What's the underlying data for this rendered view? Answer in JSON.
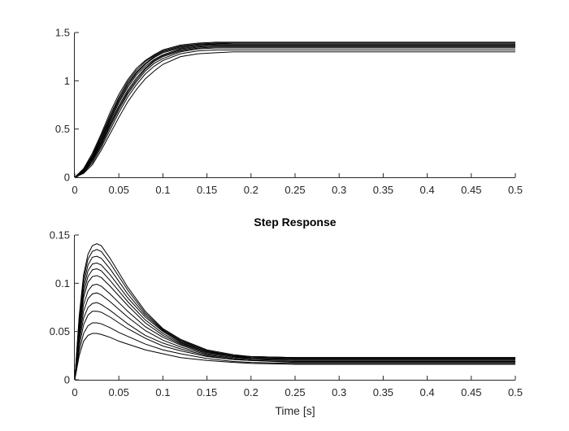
{
  "chart_data": [
    {
      "type": "line",
      "title": "",
      "xlabel": "",
      "ylabel": "",
      "xlim": [
        0,
        0.5
      ],
      "ylim": [
        0,
        1.5
      ],
      "xticks": [
        0,
        0.05,
        0.1,
        0.15,
        0.2,
        0.25,
        0.3,
        0.35,
        0.4,
        0.45,
        0.5
      ],
      "xtick_labels": [
        "0",
        "0.05",
        "0.1",
        "0.15",
        "0.2",
        "0.25",
        "0.3",
        "0.35",
        "0.4",
        "0.45",
        "0.5"
      ],
      "yticks": [
        0,
        0.5,
        1,
        1.5
      ],
      "ytick_labels": [
        "0",
        "0.5",
        "1",
        "1.5"
      ],
      "grid": false,
      "legend": "none",
      "line_color": "#000000",
      "x": [
        0,
        0.01,
        0.02,
        0.03,
        0.04,
        0.05,
        0.06,
        0.07,
        0.08,
        0.09,
        0.1,
        0.12,
        0.14,
        0.16,
        0.18,
        0.2,
        0.25,
        0.3,
        0.35,
        0.4,
        0.45,
        0.5
      ],
      "series": [
        {
          "values": [
            0,
            0.04,
            0.13,
            0.28,
            0.45,
            0.62,
            0.78,
            0.91,
            1.02,
            1.1,
            1.17,
            1.25,
            1.28,
            1.29,
            1.3,
            1.3,
            1.3,
            1.3,
            1.3,
            1.3,
            1.3,
            1.3
          ]
        },
        {
          "values": [
            0,
            0.05,
            0.15,
            0.31,
            0.49,
            0.67,
            0.83,
            0.96,
            1.07,
            1.15,
            1.21,
            1.28,
            1.31,
            1.32,
            1.32,
            1.32,
            1.32,
            1.32,
            1.32,
            1.32,
            1.32,
            1.32
          ]
        },
        {
          "values": [
            0,
            0.05,
            0.17,
            0.33,
            0.52,
            0.7,
            0.86,
            0.99,
            1.1,
            1.18,
            1.23,
            1.3,
            1.33,
            1.34,
            1.34,
            1.34,
            1.34,
            1.34,
            1.34,
            1.34,
            1.34,
            1.34
          ]
        },
        {
          "values": [
            0,
            0.06,
            0.18,
            0.35,
            0.54,
            0.72,
            0.88,
            1.01,
            1.12,
            1.2,
            1.25,
            1.31,
            1.34,
            1.35,
            1.35,
            1.35,
            1.35,
            1.35,
            1.35,
            1.35,
            1.35,
            1.35
          ]
        },
        {
          "values": [
            0,
            0.06,
            0.19,
            0.36,
            0.56,
            0.74,
            0.9,
            1.03,
            1.13,
            1.21,
            1.26,
            1.32,
            1.35,
            1.36,
            1.36,
            1.36,
            1.36,
            1.36,
            1.36,
            1.36,
            1.36,
            1.36
          ]
        },
        {
          "values": [
            0,
            0.07,
            0.2,
            0.38,
            0.58,
            0.77,
            0.93,
            1.06,
            1.15,
            1.22,
            1.27,
            1.33,
            1.36,
            1.37,
            1.37,
            1.37,
            1.37,
            1.37,
            1.37,
            1.37,
            1.37,
            1.37
          ]
        },
        {
          "values": [
            0,
            0.07,
            0.21,
            0.39,
            0.6,
            0.79,
            0.95,
            1.08,
            1.17,
            1.24,
            1.29,
            1.34,
            1.37,
            1.38,
            1.38,
            1.38,
            1.38,
            1.38,
            1.38,
            1.38,
            1.38,
            1.38
          ]
        },
        {
          "values": [
            0,
            0.08,
            0.22,
            0.41,
            0.62,
            0.81,
            0.97,
            1.09,
            1.18,
            1.25,
            1.3,
            1.35,
            1.38,
            1.38,
            1.39,
            1.39,
            1.39,
            1.39,
            1.39,
            1.39,
            1.39,
            1.39
          ]
        },
        {
          "values": [
            0,
            0.08,
            0.23,
            0.43,
            0.64,
            0.83,
            0.99,
            1.11,
            1.2,
            1.26,
            1.31,
            1.36,
            1.38,
            1.39,
            1.39,
            1.39,
            1.39,
            1.39,
            1.39,
            1.39,
            1.39,
            1.39
          ]
        },
        {
          "values": [
            0,
            0.09,
            0.25,
            0.45,
            0.67,
            0.86,
            1.01,
            1.13,
            1.21,
            1.27,
            1.32,
            1.37,
            1.39,
            1.4,
            1.4,
            1.4,
            1.4,
            1.4,
            1.4,
            1.4,
            1.4,
            1.4
          ]
        }
      ]
    },
    {
      "type": "line",
      "title": "Step Response",
      "xlabel": "Time [s]",
      "ylabel": "",
      "xlim": [
        0,
        0.5
      ],
      "ylim": [
        0,
        0.15
      ],
      "xticks": [
        0,
        0.05,
        0.1,
        0.15,
        0.2,
        0.25,
        0.3,
        0.35,
        0.4,
        0.45,
        0.5
      ],
      "xtick_labels": [
        "0",
        "0.05",
        "0.1",
        "0.15",
        "0.2",
        "0.25",
        "0.3",
        "0.35",
        "0.4",
        "0.45",
        "0.5"
      ],
      "yticks": [
        0,
        0.05,
        0.1,
        0.15
      ],
      "ytick_labels": [
        "0",
        "0.05",
        "0.1",
        "0.15"
      ],
      "grid": false,
      "legend": "none",
      "line_color": "#000000",
      "x": [
        0,
        0.005,
        0.01,
        0.015,
        0.02,
        0.025,
        0.03,
        0.04,
        0.05,
        0.06,
        0.08,
        0.1,
        0.12,
        0.15,
        0.18,
        0.2,
        0.25,
        0.3,
        0.4,
        0.5
      ],
      "series": [
        {
          "values": [
            0,
            0.025,
            0.04,
            0.046,
            0.048,
            0.048,
            0.047,
            0.044,
            0.04,
            0.037,
            0.031,
            0.027,
            0.023,
            0.02,
            0.018,
            0.017,
            0.016,
            0.016,
            0.016,
            0.016
          ]
        },
        {
          "values": [
            0,
            0.03,
            0.048,
            0.056,
            0.059,
            0.059,
            0.058,
            0.054,
            0.049,
            0.045,
            0.037,
            0.031,
            0.027,
            0.022,
            0.019,
            0.018,
            0.017,
            0.017,
            0.017,
            0.017
          ]
        },
        {
          "values": [
            0,
            0.035,
            0.057,
            0.067,
            0.071,
            0.071,
            0.07,
            0.065,
            0.059,
            0.053,
            0.043,
            0.035,
            0.03,
            0.024,
            0.021,
            0.02,
            0.018,
            0.018,
            0.018,
            0.018
          ]
        },
        {
          "values": [
            0,
            0.04,
            0.064,
            0.075,
            0.079,
            0.08,
            0.078,
            0.072,
            0.065,
            0.058,
            0.046,
            0.038,
            0.032,
            0.025,
            0.021,
            0.02,
            0.019,
            0.019,
            0.019,
            0.019
          ]
        },
        {
          "values": [
            0,
            0.044,
            0.071,
            0.084,
            0.089,
            0.09,
            0.088,
            0.081,
            0.073,
            0.065,
            0.051,
            0.041,
            0.034,
            0.026,
            0.022,
            0.021,
            0.02,
            0.02,
            0.02,
            0.02
          ]
        },
        {
          "values": [
            0,
            0.048,
            0.078,
            0.092,
            0.098,
            0.099,
            0.097,
            0.089,
            0.08,
            0.071,
            0.055,
            0.044,
            0.036,
            0.027,
            0.023,
            0.022,
            0.021,
            0.021,
            0.021,
            0.021
          ]
        },
        {
          "values": [
            0,
            0.052,
            0.085,
            0.101,
            0.107,
            0.108,
            0.106,
            0.097,
            0.087,
            0.077,
            0.059,
            0.046,
            0.037,
            0.028,
            0.024,
            0.022,
            0.021,
            0.021,
            0.021,
            0.021
          ]
        },
        {
          "values": [
            0,
            0.055,
            0.09,
            0.107,
            0.114,
            0.115,
            0.113,
            0.103,
            0.092,
            0.081,
            0.062,
            0.048,
            0.038,
            0.029,
            0.024,
            0.023,
            0.022,
            0.022,
            0.022,
            0.022
          ]
        },
        {
          "values": [
            0,
            0.058,
            0.095,
            0.113,
            0.12,
            0.121,
            0.119,
            0.109,
            0.097,
            0.085,
            0.065,
            0.05,
            0.039,
            0.029,
            0.025,
            0.023,
            0.022,
            0.022,
            0.022,
            0.022
          ]
        },
        {
          "values": [
            0,
            0.061,
            0.1,
            0.119,
            0.127,
            0.128,
            0.126,
            0.115,
            0.102,
            0.089,
            0.067,
            0.051,
            0.04,
            0.03,
            0.025,
            0.024,
            0.023,
            0.023,
            0.023,
            0.023
          ]
        },
        {
          "values": [
            0,
            0.064,
            0.105,
            0.125,
            0.133,
            0.135,
            0.133,
            0.121,
            0.107,
            0.093,
            0.069,
            0.052,
            0.041,
            0.03,
            0.025,
            0.024,
            0.023,
            0.023,
            0.023,
            0.023
          ]
        },
        {
          "values": [
            0,
            0.066,
            0.109,
            0.13,
            0.139,
            0.141,
            0.139,
            0.126,
            0.111,
            0.096,
            0.071,
            0.053,
            0.042,
            0.031,
            0.026,
            0.024,
            0.023,
            0.023,
            0.023,
            0.023
          ]
        }
      ]
    }
  ]
}
